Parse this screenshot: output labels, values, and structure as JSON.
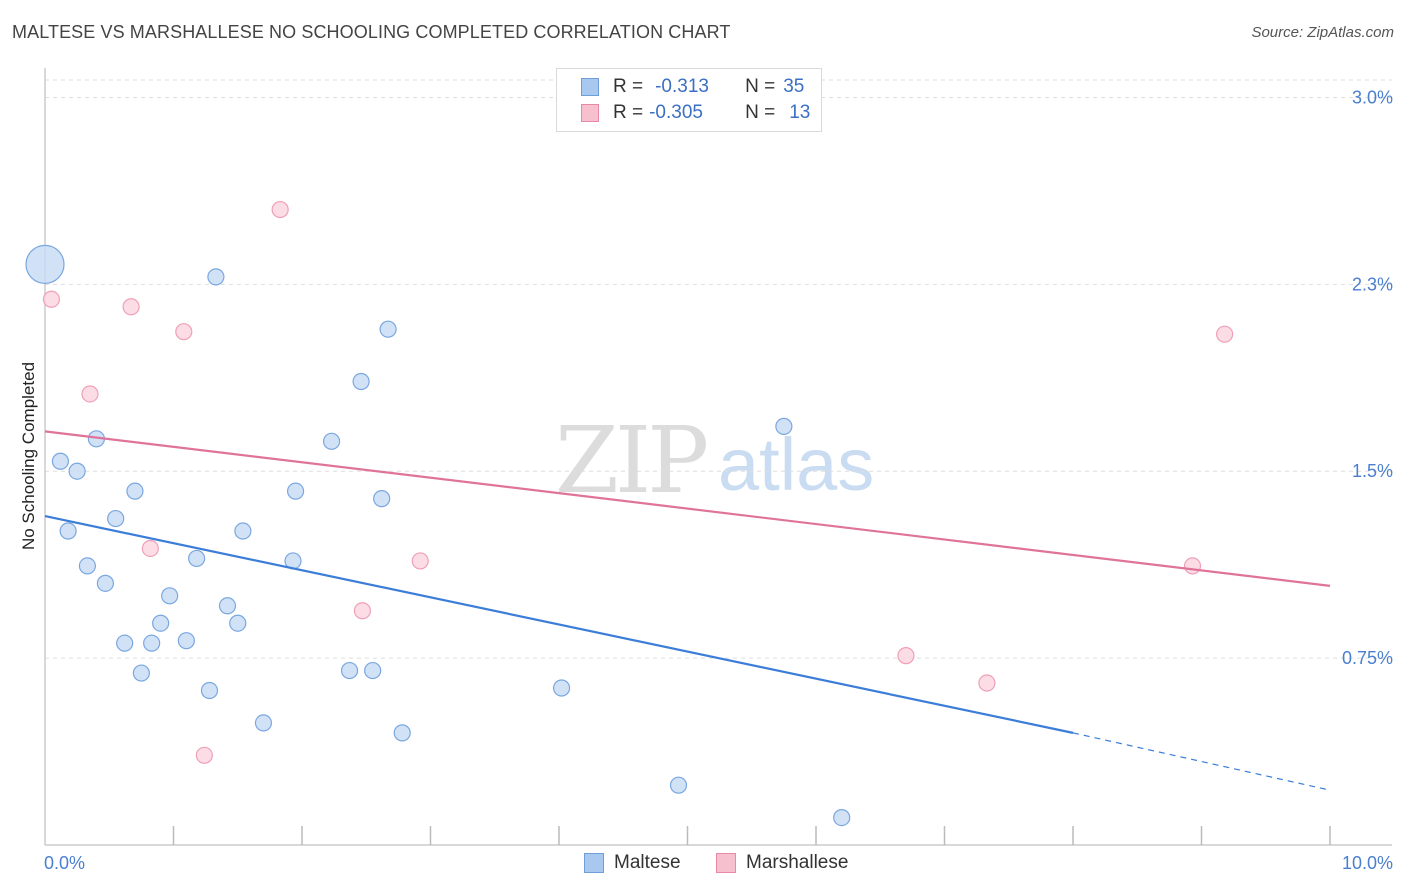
{
  "title": "MALTESE VS MARSHALLESE NO SCHOOLING COMPLETED CORRELATION CHART",
  "source": "Source: ZipAtlas.com",
  "watermark": {
    "zip": "ZIP",
    "atlas": "atlas"
  },
  "legend_stats": [
    {
      "series": "Maltese",
      "r_label": "R =",
      "r_value": "-0.313",
      "n_label": "N =",
      "n_value": "35",
      "color": "#a9c8ef",
      "border": "#6f9fd8"
    },
    {
      "series": "Marshallese",
      "r_label": "R =",
      "r_value": "-0.305",
      "n_label": "N =",
      "n_value": "13",
      "color": "#f7c0cf",
      "border": "#e88aa6"
    }
  ],
  "chart_data": {
    "type": "scatter",
    "title": "MALTESE VS MARSHALLESE NO SCHOOLING COMPLETED CORRELATION CHART",
    "xlabel": "",
    "ylabel": "No Schooling Completed",
    "xlim": [
      0,
      10
    ],
    "ylim": [
      0,
      3.07
    ],
    "x_tick_labels": [
      "0.0%",
      "10.0%"
    ],
    "y_ticks": [
      0.75,
      1.5,
      2.25,
      3.0
    ],
    "y_tick_labels": [
      "0.75%",
      "1.5%",
      "2.3%",
      "3.0%"
    ],
    "grid": true,
    "series": [
      {
        "name": "Maltese",
        "color": "#3b7dd8",
        "fill": "#c5dbf5",
        "stroke": "#7aa7df",
        "points": [
          {
            "x": 0.0,
            "y": 2.33,
            "big": true
          },
          {
            "x": 0.12,
            "y": 1.54
          },
          {
            "x": 0.18,
            "y": 1.26
          },
          {
            "x": 0.25,
            "y": 1.5
          },
          {
            "x": 0.33,
            "y": 1.12
          },
          {
            "x": 0.4,
            "y": 1.63
          },
          {
            "x": 0.47,
            "y": 1.05
          },
          {
            "x": 0.55,
            "y": 1.31
          },
          {
            "x": 0.62,
            "y": 0.81
          },
          {
            "x": 0.7,
            "y": 1.42
          },
          {
            "x": 0.75,
            "y": 0.69
          },
          {
            "x": 0.83,
            "y": 0.81
          },
          {
            "x": 0.9,
            "y": 0.89
          },
          {
            "x": 0.97,
            "y": 1.0
          },
          {
            "x": 1.1,
            "y": 0.82
          },
          {
            "x": 1.18,
            "y": 1.15
          },
          {
            "x": 1.28,
            "y": 0.62
          },
          {
            "x": 1.33,
            "y": 2.28
          },
          {
            "x": 1.42,
            "y": 0.96
          },
          {
            "x": 1.5,
            "y": 0.89
          },
          {
            "x": 1.54,
            "y": 1.26
          },
          {
            "x": 1.7,
            "y": 0.49
          },
          {
            "x": 1.93,
            "y": 1.14
          },
          {
            "x": 1.95,
            "y": 1.42
          },
          {
            "x": 2.23,
            "y": 1.62
          },
          {
            "x": 2.37,
            "y": 0.7
          },
          {
            "x": 2.46,
            "y": 1.86
          },
          {
            "x": 2.55,
            "y": 0.7
          },
          {
            "x": 2.62,
            "y": 1.39
          },
          {
            "x": 2.67,
            "y": 2.07
          },
          {
            "x": 2.78,
            "y": 0.45
          },
          {
            "x": 4.02,
            "y": 0.63
          },
          {
            "x": 4.93,
            "y": 0.24
          },
          {
            "x": 5.75,
            "y": 1.68
          },
          {
            "x": 6.2,
            "y": 0.11
          }
        ],
        "trend": {
          "x0": 0.0,
          "y0": 1.32,
          "x1": 8.0,
          "y1": 0.45,
          "dash_x1": 10.0,
          "dash_y1": 0.22
        }
      },
      {
        "name": "Marshallese",
        "color": "#e07399",
        "fill": "#fbd3de",
        "stroke": "#efa0b8",
        "points": [
          {
            "x": 0.05,
            "y": 2.19
          },
          {
            "x": 0.35,
            "y": 1.81
          },
          {
            "x": 0.67,
            "y": 2.16
          },
          {
            "x": 0.82,
            "y": 1.19
          },
          {
            "x": 1.08,
            "y": 2.06
          },
          {
            "x": 1.24,
            "y": 0.36
          },
          {
            "x": 1.83,
            "y": 2.55
          },
          {
            "x": 2.47,
            "y": 0.94
          },
          {
            "x": 2.92,
            "y": 1.14
          },
          {
            "x": 6.7,
            "y": 0.76
          },
          {
            "x": 7.33,
            "y": 0.65
          },
          {
            "x": 8.93,
            "y": 1.12
          },
          {
            "x": 9.18,
            "y": 2.05
          }
        ],
        "trend": {
          "x0": 0.0,
          "y0": 1.66,
          "x1": 10.0,
          "y1": 1.04
        }
      }
    ]
  }
}
